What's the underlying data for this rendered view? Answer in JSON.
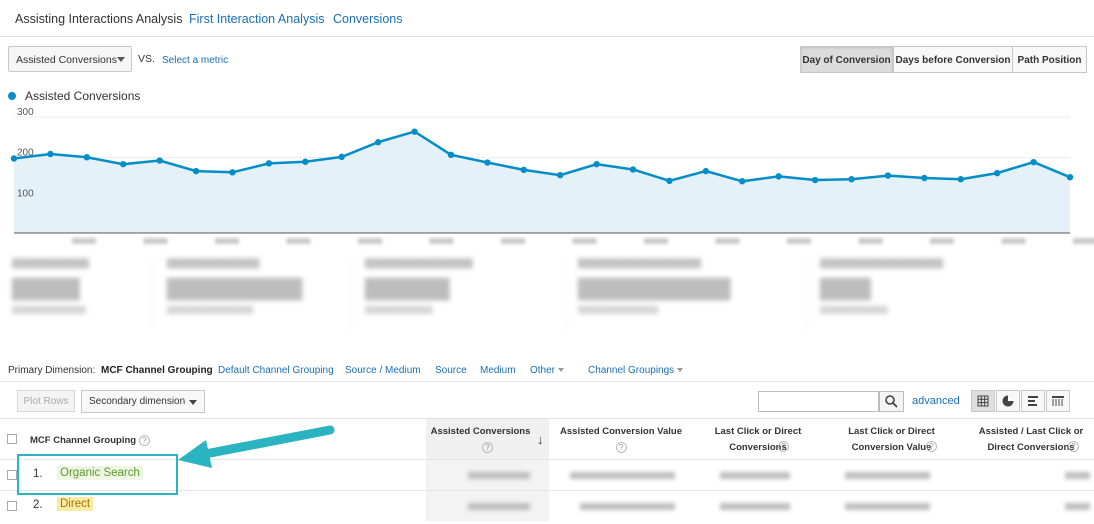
{
  "tabs": {
    "active": "Assisting Interactions Analysis",
    "first": "First Interaction Analysis",
    "conversions": "Conversions"
  },
  "controls": {
    "metric": "Assisted Conversions",
    "vs": "VS.",
    "select_metric": "Select a metric",
    "segments": [
      "Day of Conversion",
      "Days before Conversion",
      "Path Position"
    ],
    "active_segment": "Day of Conversion"
  },
  "legend": {
    "label": "Assisted Conversions"
  },
  "chart_data": {
    "type": "area",
    "series": [
      {
        "name": "Assisted Conversions",
        "values": [
          198,
          209,
          201,
          184,
          193,
          167,
          164,
          186,
          190,
          202,
          238,
          264,
          207,
          188,
          170,
          157,
          184,
          171,
          143,
          167,
          142,
          154,
          145,
          147,
          156,
          150,
          147,
          162,
          189,
          152
        ]
      }
    ],
    "yticks": [
      100,
      200,
      300
    ],
    "ylim": [
      0,
      300
    ],
    "color": "#058dc7",
    "fill": "#e4f1f9",
    "grid": true
  },
  "primary_dimension": {
    "label": "Primary Dimension:",
    "active": "MCF Channel Grouping",
    "options": [
      "Default Channel Grouping",
      "Source / Medium",
      "Source",
      "Medium"
    ],
    "other": "Other",
    "channel_groupings": "Channel Groupings"
  },
  "toolbar": {
    "plot_rows": "Plot Rows",
    "secondary_dimension": "Secondary dimension",
    "advanced": "advanced"
  },
  "table": {
    "columns": [
      "MCF Channel Grouping",
      "Assisted Conversions",
      "Assisted Conversion Value",
      "Last Click or Direct Conversions",
      "Last Click or Direct Conversion Value",
      "Assisted / Last Click or Direct Conversions"
    ],
    "rows": [
      {
        "num": "1.",
        "name": "Organic Search",
        "color": "#5c9a2a",
        "bg": "#f0f6e6"
      },
      {
        "num": "2.",
        "name": "Direct",
        "color": "#a07a00",
        "bg": "#fbe9a6"
      }
    ]
  },
  "colors": {
    "accent": "#058dc7",
    "link": "#1a6fb5",
    "annotation": "#2ab3c0"
  }
}
